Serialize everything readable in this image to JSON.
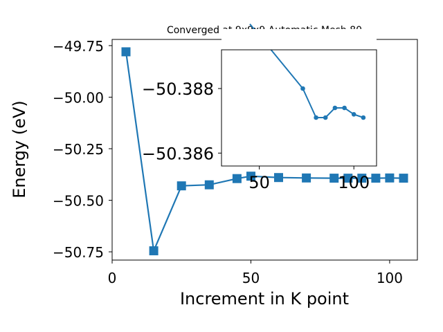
{
  "chart_data": [
    {
      "type": "line",
      "title": "Converged at 9x9x9 Automatic Mesh 80",
      "xlabel": "Increment in K point",
      "ylabel": "Energy (eV)",
      "xlim": [
        0,
        110
      ],
      "ylim": [
        -50.79,
        -49.72
      ],
      "xticks": [
        0,
        50,
        100
      ],
      "xtick_labels": [
        "0",
        "50",
        "100"
      ],
      "yticks": [
        -49.75,
        -50.0,
        -50.25,
        -50.5,
        -50.75
      ],
      "ytick_labels": [
        "−49.75",
        "−50.00",
        "−50.25",
        "−50.50",
        "−50.75"
      ],
      "grid": false,
      "color": "#1f77b4",
      "marker": "square",
      "series": [
        {
          "x": [
            5,
            15,
            25,
            35,
            45,
            50,
            60,
            70,
            80,
            85,
            90,
            95,
            100,
            105
          ],
          "y": [
            -49.78,
            -50.745,
            -50.43,
            -50.425,
            -50.395,
            -50.383,
            -50.39,
            -50.392,
            -50.393,
            -50.393,
            -50.393,
            -50.393,
            -50.392,
            -50.393
          ]
        }
      ]
    },
    {
      "type": "line",
      "title": "",
      "xlim": [
        30,
        112
      ],
      "ylim": [
        -50.3856,
        -50.3892
      ],
      "xticks": [
        50,
        100
      ],
      "xtick_labels": [
        "50",
        "100"
      ],
      "yticks": [
        -50.388,
        -50.386
      ],
      "ytick_labels": [
        "−50.388",
        "−50.386"
      ],
      "grid": false,
      "color": "#1f77b4",
      "marker": "circle",
      "series": [
        {
          "x": [
            45,
            73,
            80,
            85,
            90,
            95,
            100,
            105
          ],
          "y": [
            -50.39,
            -50.388,
            -50.3871,
            -50.3871,
            -50.3874,
            -50.3874,
            -50.3872,
            -50.3871
          ]
        }
      ]
    }
  ]
}
